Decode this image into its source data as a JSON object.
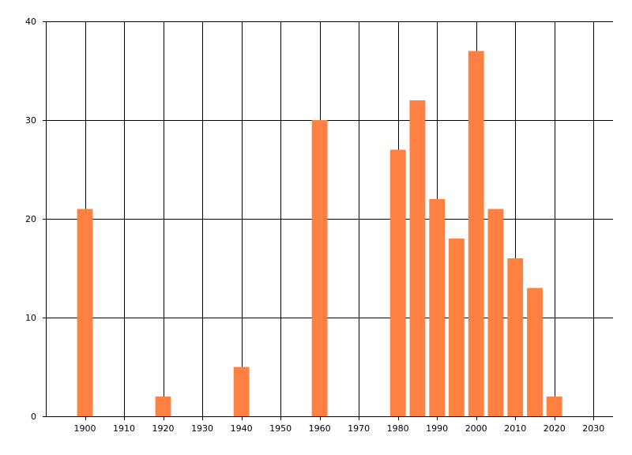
{
  "chart_data": {
    "type": "bar",
    "x": [
      1900,
      1920,
      1940,
      1960,
      1980,
      1985,
      1990,
      1995,
      2000,
      2005,
      2010,
      2015,
      2020
    ],
    "values": [
      21,
      2,
      5,
      30,
      27,
      32,
      22,
      18,
      37,
      21,
      16,
      13,
      2
    ],
    "xlim": [
      1890,
      2035
    ],
    "ylim": [
      0,
      40
    ],
    "x_ticks": [
      1900,
      1910,
      1920,
      1930,
      1940,
      1950,
      1960,
      1970,
      1980,
      1990,
      2000,
      2010,
      2020,
      2030
    ],
    "y_ticks": [
      0,
      10,
      20,
      30,
      40
    ],
    "bar_width": 4,
    "title": "",
    "xlabel": "",
    "ylabel": "",
    "grid": true,
    "legend": "none",
    "colors": {
      "bar": "#FF8040",
      "grid": "#000000",
      "text": "#000000",
      "background": "#FFFFFF"
    }
  }
}
